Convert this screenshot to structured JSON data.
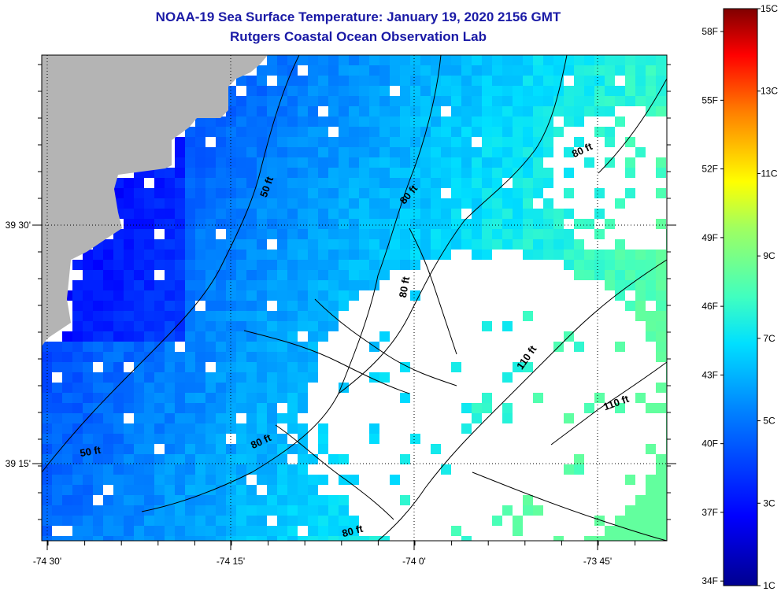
{
  "title": "NOAA-19 Sea Surface Temperature:  January 19, 2020 2156 GMT",
  "subtitle": "Rutgers Coastal Ocean Observation Lab",
  "lat_ticks": [
    {
      "label": "39 30'",
      "lat": 39.5
    },
    {
      "label": "39 15'",
      "lat": 39.25
    }
  ],
  "lon_ticks": [
    {
      "label": "-74 30'",
      "lon": -74.5
    },
    {
      "label": "-74 15'",
      "lon": -74.25
    },
    {
      "label": "-74 0'",
      "lon": -74.0
    },
    {
      "label": "-73 45'",
      "lon": -73.75
    }
  ],
  "colorbar": {
    "min_c": 1,
    "max_c": 15,
    "celsius_labels": [
      "15C",
      "13C",
      "11C",
      "9C",
      "7C",
      "5C",
      "3C",
      "1C"
    ],
    "fahrenheit_labels": [
      "58F",
      "55F",
      "52F",
      "49F",
      "46F",
      "43F",
      "40F",
      "37F",
      "34F"
    ]
  },
  "contour_labels": [
    {
      "text": "50 ft"
    },
    {
      "text": "80 ft"
    },
    {
      "text": "80 ft"
    },
    {
      "text": "80 ft"
    },
    {
      "text": "110 ft"
    },
    {
      "text": "110 ft"
    },
    {
      "text": "50 ft"
    },
    {
      "text": "80 ft"
    },
    {
      "text": "80 ft"
    }
  ],
  "colors": {
    "land": "#b4b4b4",
    "no_data": "#ffffff",
    "title": "#1a1aa6"
  }
}
